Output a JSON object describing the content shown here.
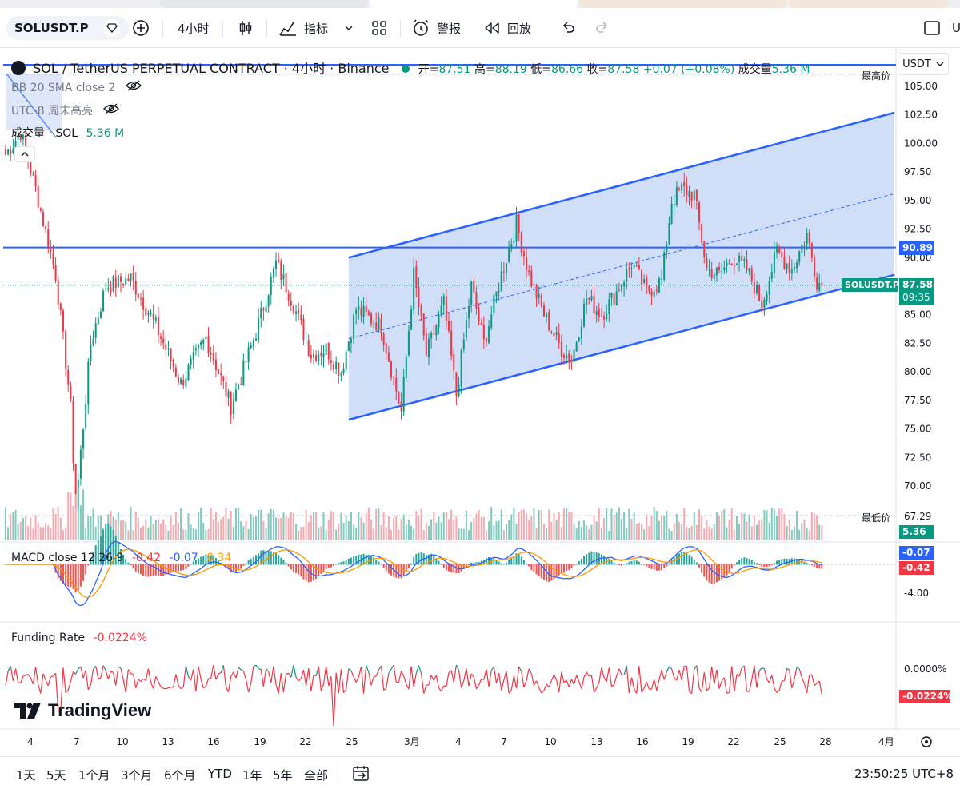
{
  "toolbar": {
    "symbol": "SOLUSDT.P",
    "interval": "4小时",
    "indicators": "指标",
    "alert": "警报",
    "replay": "回放",
    "right_letter": "U"
  },
  "legend": {
    "title": "SOL / TetherUS PERPETUAL CONTRACT · 4小时 · Binance",
    "open_label": "开=",
    "open": "87.51",
    "high_label": "高=",
    "high": "88.19",
    "low_label": "低=",
    "low": "86.66",
    "close_label": "收=",
    "close": "87.58",
    "change": "+0.07 (+0.08%)",
    "vol_label": "成交量",
    "vol": "5.36 M",
    "bb": "BB 20 SMA close 2",
    "session": "UTC-8 周末高亮",
    "volume_line_label": "成交量 · SOL",
    "volume_line_value": "5.36 M"
  },
  "price_axis": {
    "currency": "USDT",
    "high_label": "最高价",
    "low_label": "最低价",
    "low_value": "67.29",
    "line_tag": "90.89",
    "symbol_tag": "SOLUSDT.P",
    "last_price": "87.58",
    "countdown": "09:35",
    "volume_tag": "5.36 M",
    "macd_tag_1": "-0.07",
    "macd_tag_2": "-0.42",
    "macd_tick": "-4.00",
    "funding_tick": "0.0000%",
    "funding_tag": "-0.0224%"
  },
  "macd": {
    "label": "MACD close 12 26 9",
    "hist": "-0.42",
    "macd": "-0.07",
    "signal": "0.34"
  },
  "funding": {
    "label": "Funding Rate",
    "value": "-0.0224%"
  },
  "logo_text": "TradingView",
  "bottom": {
    "ranges": [
      "1天",
      "5天",
      "1个月",
      "3个月",
      "6个月",
      "YTD",
      "1年",
      "5年",
      "全部"
    ],
    "clock": "23:50:25 UTC+8"
  },
  "colors": {
    "up": "#089981",
    "down": "#f23645",
    "channel": "#2962ff",
    "channel_fill": "#c9d8f7",
    "macd_line": "#2962ff",
    "signal_line": "#ff9800"
  },
  "chart_data": [
    {
      "type": "candlestick",
      "title": "SOL / TetherUS PERPETUAL CONTRACT · 4小时 · Binance",
      "x_ticks": [
        "4",
        "7",
        "10",
        "13",
        "16",
        "19",
        "22",
        "25",
        "3月",
        "4",
        "7",
        "10",
        "13",
        "16",
        "19",
        "22",
        "25",
        "28",
        "4月"
      ],
      "y_ticks": [
        "105.00",
        "102.50",
        "100.00",
        "97.50",
        "95.00",
        "92.50",
        "90.00",
        "87.50",
        "85.00",
        "82.50",
        "80.00",
        "77.50",
        "75.00",
        "72.50",
        "70.00"
      ],
      "ylim": [
        67.3,
        107.2
      ],
      "anchors": [
        {
          "bar": 0,
          "price": 99.0
        },
        {
          "bar": 6,
          "price": 101.0
        },
        {
          "bar": 12,
          "price": 96.0
        },
        {
          "bar": 20,
          "price": 88.5
        },
        {
          "bar": 25,
          "price": 79.0
        },
        {
          "bar": 29,
          "price": 70.5
        },
        {
          "bar": 34,
          "price": 82.5
        },
        {
          "bar": 40,
          "price": 87.5
        },
        {
          "bar": 50,
          "price": 88.2
        },
        {
          "bar": 60,
          "price": 84.0
        },
        {
          "bar": 70,
          "price": 79.0
        },
        {
          "bar": 80,
          "price": 83.0
        },
        {
          "bar": 90,
          "price": 77.0
        },
        {
          "bar": 100,
          "price": 83.5
        },
        {
          "bar": 108,
          "price": 89.5
        },
        {
          "bar": 114,
          "price": 86.5
        },
        {
          "bar": 122,
          "price": 81.5
        },
        {
          "bar": 128,
          "price": 82.0
        },
        {
          "bar": 134,
          "price": 80.0
        },
        {
          "bar": 140,
          "price": 85.5
        },
        {
          "bar": 150,
          "price": 84.0
        },
        {
          "bar": 158,
          "price": 76.5
        },
        {
          "bar": 163,
          "price": 88.5
        },
        {
          "bar": 168,
          "price": 81.5
        },
        {
          "bar": 175,
          "price": 86.0
        },
        {
          "bar": 180,
          "price": 78.0
        },
        {
          "bar": 186,
          "price": 87.5
        },
        {
          "bar": 191,
          "price": 82.5
        },
        {
          "bar": 198,
          "price": 88.5
        },
        {
          "bar": 204,
          "price": 93.0
        },
        {
          "bar": 209,
          "price": 88.5
        },
        {
          "bar": 215,
          "price": 85.0
        },
        {
          "bar": 222,
          "price": 82.0
        },
        {
          "bar": 226,
          "price": 81.0
        },
        {
          "bar": 232,
          "price": 86.5
        },
        {
          "bar": 238,
          "price": 85.0
        },
        {
          "bar": 244,
          "price": 87.0
        },
        {
          "bar": 250,
          "price": 89.5
        },
        {
          "bar": 256,
          "price": 87.0
        },
        {
          "bar": 262,
          "price": 88.0
        },
        {
          "bar": 266,
          "price": 95.0
        },
        {
          "bar": 270,
          "price": 96.0
        },
        {
          "bar": 275,
          "price": 95.5
        },
        {
          "bar": 280,
          "price": 89.0
        },
        {
          "bar": 285,
          "price": 88.5
        },
        {
          "bar": 290,
          "price": 90.0
        },
        {
          "bar": 296,
          "price": 89.0
        },
        {
          "bar": 302,
          "price": 86.0
        },
        {
          "bar": 308,
          "price": 90.5
        },
        {
          "bar": 314,
          "price": 89.0
        },
        {
          "bar": 320,
          "price": 92.0
        },
        {
          "bar": 324,
          "price": 88.0
        },
        {
          "bar": 326,
          "price": 87.58
        }
      ],
      "horizontal_line": 90.89,
      "channel": {
        "upper": [
          [
            137,
            90.0
          ],
          [
            355,
            102.7
          ]
        ],
        "lower": [
          [
            137,
            75.8
          ],
          [
            355,
            88.5
          ]
        ],
        "mid_dashed": [
          [
            137,
            82.9
          ],
          [
            355,
            95.6
          ]
        ]
      },
      "last_price": 87.58,
      "high_marker": "最高价",
      "low_marker": 67.29
    },
    {
      "type": "bar",
      "title": "成交量 · SOL",
      "last_value": "5.36 M"
    },
    {
      "type": "line",
      "title": "MACD close 12 26 9",
      "series": [
        {
          "name": "MACD",
          "last": -0.07
        },
        {
          "name": "Signal",
          "last": 0.34
        },
        {
          "name": "Histogram",
          "last": -0.42
        }
      ],
      "y_ticks": [
        "-4.00"
      ]
    },
    {
      "type": "line",
      "title": "Funding Rate",
      "series": [
        {
          "name": "Funding Rate",
          "last": -0.0224
        }
      ],
      "y_ticks": [
        "0.0000%"
      ]
    }
  ]
}
